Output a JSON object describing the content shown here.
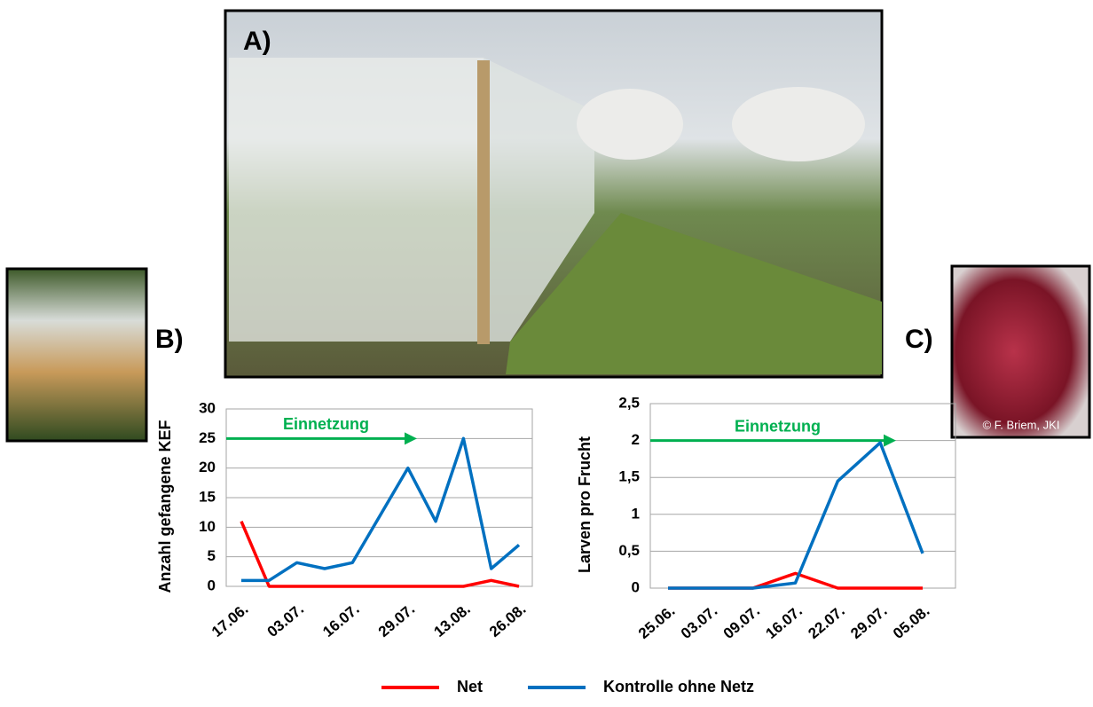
{
  "panel_labels": [
    "A)",
    "B)",
    "C)"
  ],
  "photo_credit": "© F. Briem, JKI",
  "chart_data": [
    {
      "type": "line",
      "ylabel": "Anzahl gefangene KEF",
      "annotation": "Einnetzung",
      "categories": [
        "17.06.",
        null,
        "03.07.",
        null,
        "16.07.",
        null,
        "29.07.",
        null,
        "13.08.",
        null,
        "26.08."
      ],
      "series": [
        {
          "name": "Net",
          "color": "#ff0000",
          "values": [
            11,
            0,
            0,
            0,
            0,
            0,
            0,
            0,
            0,
            1,
            0
          ]
        },
        {
          "name": "Kontrolle ohne Netz",
          "color": "#0070c0",
          "values": [
            1,
            1,
            4,
            3,
            4,
            12,
            20,
            11,
            25,
            3,
            7
          ]
        }
      ],
      "ylim": [
        0,
        30
      ],
      "yticks": [
        0,
        5,
        10,
        15,
        20,
        25,
        30
      ],
      "grid": true
    },
    {
      "type": "line",
      "ylabel": "Larven pro Frucht",
      "annotation": "Einnetzung",
      "categories": [
        "25.06.",
        "03.07.",
        "09.07.",
        "16.07.",
        "22.07.",
        "29.07.",
        "05.08."
      ],
      "series": [
        {
          "name": "Net",
          "color": "#ff0000",
          "values": [
            0,
            0,
            0,
            0.2,
            0,
            0,
            0
          ]
        },
        {
          "name": "Kontrolle ohne Netz",
          "color": "#0070c0",
          "values": [
            0,
            0,
            0,
            0.07,
            1.45,
            1.97,
            0.47
          ]
        }
      ],
      "ylim": [
        0,
        2.5
      ],
      "yticks": [
        0,
        {
          "value": 0.5,
          "label": "0,5"
        },
        1,
        {
          "value": 1.5,
          "label": "1,5"
        },
        2,
        {
          "value": 2.5,
          "label": "2,5"
        }
      ],
      "grid": true
    }
  ]
}
